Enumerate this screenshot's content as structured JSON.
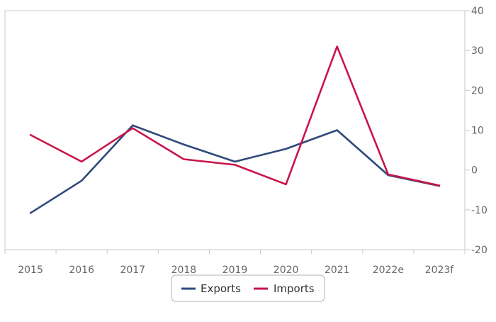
{
  "chart_data": {
    "type": "line",
    "title": "",
    "xlabel": "",
    "ylabel": "",
    "categories": [
      "2015",
      "2016",
      "2017",
      "2018",
      "2019",
      "2020",
      "2021",
      "2022e",
      "2023f"
    ],
    "ylim": [
      -20,
      40
    ],
    "y_ticks": [
      -20,
      -10,
      0,
      10,
      20,
      30,
      40
    ],
    "y_axis_side": "right",
    "grid": false,
    "legend_position": "bottom-center",
    "series": [
      {
        "name": "Exports",
        "color": "#2E4A7A",
        "values": [
          -10.8,
          -2.7,
          11.2,
          6.4,
          2.1,
          5.3,
          10.0,
          -1.3,
          -4.0
        ]
      },
      {
        "name": "Imports",
        "color": "#C8154A",
        "values": [
          8.8,
          2.1,
          10.5,
          2.7,
          1.3,
          -3.6,
          31.0,
          -1.1,
          -3.9
        ]
      }
    ]
  }
}
